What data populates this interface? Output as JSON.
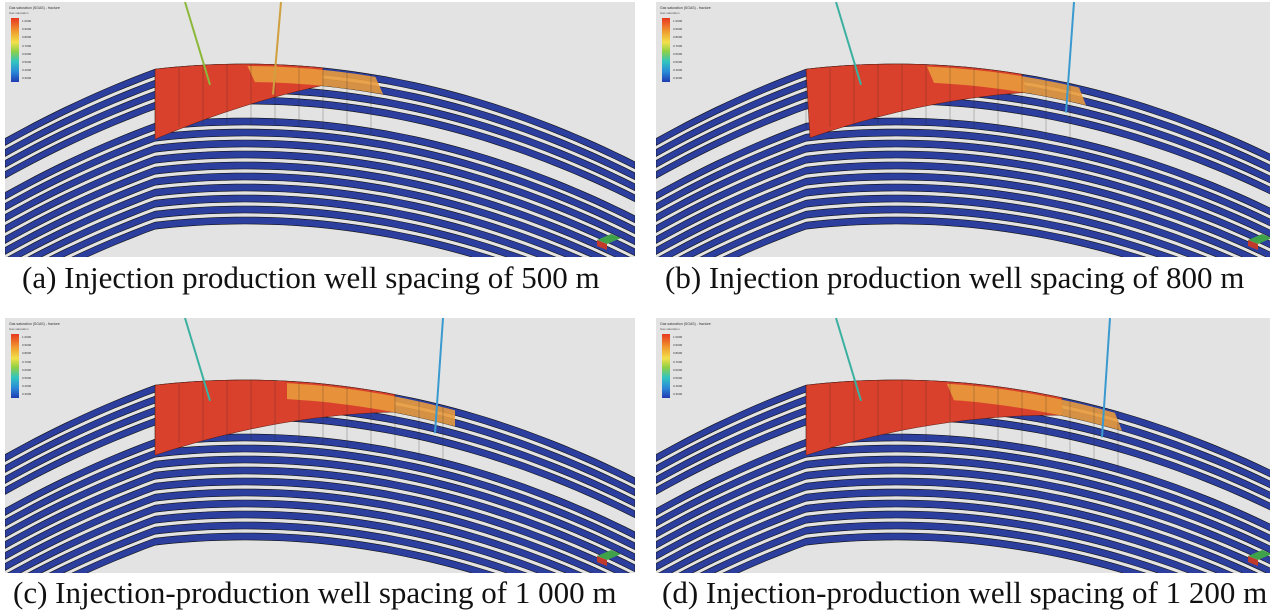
{
  "panels": [
    {
      "caption": "(a) Injection production well spacing of 500 m",
      "gas_cap_extent": 0.42
    },
    {
      "caption": "(b) Injection production well spacing of 800 m",
      "gas_cap_extent": 0.55
    },
    {
      "caption": "(c) Injection-production well spacing of 1 000 m",
      "gas_cap_extent": 0.6
    },
    {
      "caption": "(d) Injection-production well spacing of 1 200 m",
      "gas_cap_extent": 0.64
    }
  ],
  "colors": {
    "high": "#d9412c",
    "mid": "#e89a3c",
    "low": "#2c3f9e",
    "background": "#e3e3e3"
  },
  "legend": {
    "title": "Gas saturation (SGAS) - fracture",
    "subtitle": "Gas saturation",
    "ticks": [
      "1.0000",
      "0.9000",
      "0.8000",
      "0.7000",
      "0.6000",
      "0.5000",
      "0.4000",
      "0.3000",
      "0.2000",
      "0.1000"
    ]
  }
}
